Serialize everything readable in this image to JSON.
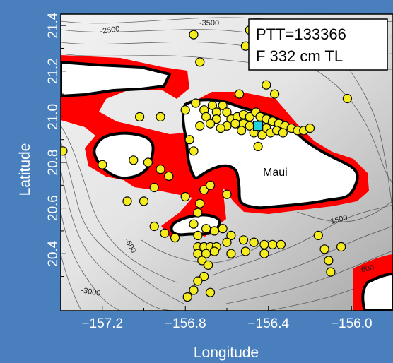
{
  "chart_data": {
    "type": "scatter",
    "xlabel": "Longitude",
    "ylabel": "Latitude",
    "xlim": [
      -157.4,
      -155.8
    ],
    "ylim": [
      20.15,
      21.45
    ],
    "x_ticks": [
      -157.2,
      -156.8,
      -156.4,
      -156.0
    ],
    "x_tick_labels": [
      "−157.2",
      "−156.8",
      "−156.4",
      "−156.0"
    ],
    "y_ticks": [
      20.4,
      20.6,
      20.8,
      21.0,
      21.2,
      21.4
    ],
    "y_tick_labels": [
      "20.4",
      "20.6",
      "20.8",
      "21.0",
      "21.2",
      "21.4"
    ],
    "legend": [
      "PTT=133366",
      "F 332 cm TL"
    ],
    "legend_position": "top-right",
    "annotations": [
      "Maui"
    ],
    "contour_labels": [
      "-2500",
      "-3500",
      "-600",
      "-1500",
      "-600",
      "-3000"
    ],
    "colors": {
      "points": "#f5ec1f",
      "tag_marker": "#22d3e0",
      "shallow_area": "#ff0000",
      "land": "#ffffff",
      "background": "#4a7fbd"
    },
    "tag_location": {
      "x": -156.45,
      "y": 20.96
    },
    "points": [
      {
        "x": -156.76,
        "y": 21.36
      },
      {
        "x": -156.49,
        "y": 21.38
      },
      {
        "x": -156.51,
        "y": 21.31
      },
      {
        "x": -156.73,
        "y": 21.24
      },
      {
        "x": -156.02,
        "y": 21.08
      },
      {
        "x": -156.41,
        "y": 21.14
      },
      {
        "x": -156.37,
        "y": 21.1
      },
      {
        "x": -156.54,
        "y": 21.1
      },
      {
        "x": -156.75,
        "y": 21.06
      },
      {
        "x": -156.8,
        "y": 21.03
      },
      {
        "x": -156.92,
        "y": 21.0
      },
      {
        "x": -157.02,
        "y": 21.0
      },
      {
        "x": -156.62,
        "y": 21.05
      },
      {
        "x": -156.67,
        "y": 21.05
      },
      {
        "x": -156.71,
        "y": 21.03
      },
      {
        "x": -156.65,
        "y": 21.02
      },
      {
        "x": -156.6,
        "y": 21.02
      },
      {
        "x": -156.7,
        "y": 21.0
      },
      {
        "x": -156.65,
        "y": 20.99
      },
      {
        "x": -156.58,
        "y": 20.99
      },
      {
        "x": -156.55,
        "y": 21.0
      },
      {
        "x": -156.52,
        "y": 21.01
      },
      {
        "x": -156.49,
        "y": 21.0
      },
      {
        "x": -156.46,
        "y": 21.02
      },
      {
        "x": -156.44,
        "y": 21.0
      },
      {
        "x": -156.41,
        "y": 20.99
      },
      {
        "x": -156.38,
        "y": 20.98
      },
      {
        "x": -156.35,
        "y": 20.97
      },
      {
        "x": -156.32,
        "y": 20.96
      },
      {
        "x": -156.29,
        "y": 20.95
      },
      {
        "x": -156.26,
        "y": 20.94
      },
      {
        "x": -156.23,
        "y": 20.94
      },
      {
        "x": -156.2,
        "y": 20.95
      },
      {
        "x": -156.52,
        "y": 20.97
      },
      {
        "x": -156.49,
        "y": 20.96
      },
      {
        "x": -156.47,
        "y": 20.93
      },
      {
        "x": -156.43,
        "y": 20.92
      },
      {
        "x": -156.41,
        "y": 20.95
      },
      {
        "x": -156.39,
        "y": 20.93
      },
      {
        "x": -156.36,
        "y": 20.94
      },
      {
        "x": -156.33,
        "y": 20.93
      },
      {
        "x": -156.53,
        "y": 20.94
      },
      {
        "x": -156.56,
        "y": 20.97
      },
      {
        "x": -156.6,
        "y": 20.96
      },
      {
        "x": -156.63,
        "y": 20.95
      },
      {
        "x": -156.68,
        "y": 20.97
      },
      {
        "x": -156.73,
        "y": 20.96
      },
      {
        "x": -156.78,
        "y": 20.9
      },
      {
        "x": -156.76,
        "y": 20.85
      },
      {
        "x": -156.45,
        "y": 20.87
      },
      {
        "x": -157.39,
        "y": 20.85
      },
      {
        "x": -157.2,
        "y": 20.79
      },
      {
        "x": -157.05,
        "y": 20.81
      },
      {
        "x": -156.98,
        "y": 20.8
      },
      {
        "x": -156.92,
        "y": 20.77
      },
      {
        "x": -156.88,
        "y": 20.74
      },
      {
        "x": -156.95,
        "y": 20.69
      },
      {
        "x": -156.8,
        "y": 20.65
      },
      {
        "x": -156.73,
        "y": 20.62
      },
      {
        "x": -156.71,
        "y": 20.68
      },
      {
        "x": -156.68,
        "y": 20.7
      },
      {
        "x": -156.6,
        "y": 20.66
      },
      {
        "x": -157.08,
        "y": 20.63
      },
      {
        "x": -157.0,
        "y": 20.63
      },
      {
        "x": -156.74,
        "y": 20.58
      },
      {
        "x": -156.76,
        "y": 20.53
      },
      {
        "x": -156.95,
        "y": 20.52
      },
      {
        "x": -156.9,
        "y": 20.49
      },
      {
        "x": -156.85,
        "y": 20.47
      },
      {
        "x": -156.74,
        "y": 20.48
      },
      {
        "x": -156.7,
        "y": 20.51
      },
      {
        "x": -156.66,
        "y": 20.5
      },
      {
        "x": -156.62,
        "y": 20.51
      },
      {
        "x": -156.58,
        "y": 20.48
      },
      {
        "x": -156.6,
        "y": 20.45
      },
      {
        "x": -156.52,
        "y": 20.46
      },
      {
        "x": -156.47,
        "y": 20.45
      },
      {
        "x": -156.42,
        "y": 20.44
      },
      {
        "x": -156.38,
        "y": 20.44
      },
      {
        "x": -156.34,
        "y": 20.44
      },
      {
        "x": -156.74,
        "y": 20.43
      },
      {
        "x": -156.71,
        "y": 20.43
      },
      {
        "x": -156.68,
        "y": 20.43
      },
      {
        "x": -156.65,
        "y": 20.43
      },
      {
        "x": -156.74,
        "y": 20.4
      },
      {
        "x": -156.7,
        "y": 20.4
      },
      {
        "x": -156.66,
        "y": 20.41
      },
      {
        "x": -156.58,
        "y": 20.4
      },
      {
        "x": -156.51,
        "y": 20.41
      },
      {
        "x": -156.72,
        "y": 20.37
      },
      {
        "x": -156.69,
        "y": 20.35
      },
      {
        "x": -156.42,
        "y": 20.4
      },
      {
        "x": -156.16,
        "y": 20.48
      },
      {
        "x": -156.13,
        "y": 20.42
      },
      {
        "x": -156.05,
        "y": 20.43
      },
      {
        "x": -156.11,
        "y": 20.37
      },
      {
        "x": -156.1,
        "y": 20.32
      },
      {
        "x": -156.71,
        "y": 20.3
      },
      {
        "x": -156.74,
        "y": 20.28
      },
      {
        "x": -156.76,
        "y": 20.24
      },
      {
        "x": -156.68,
        "y": 20.23
      },
      {
        "x": -156.79,
        "y": 20.21
      }
    ]
  }
}
